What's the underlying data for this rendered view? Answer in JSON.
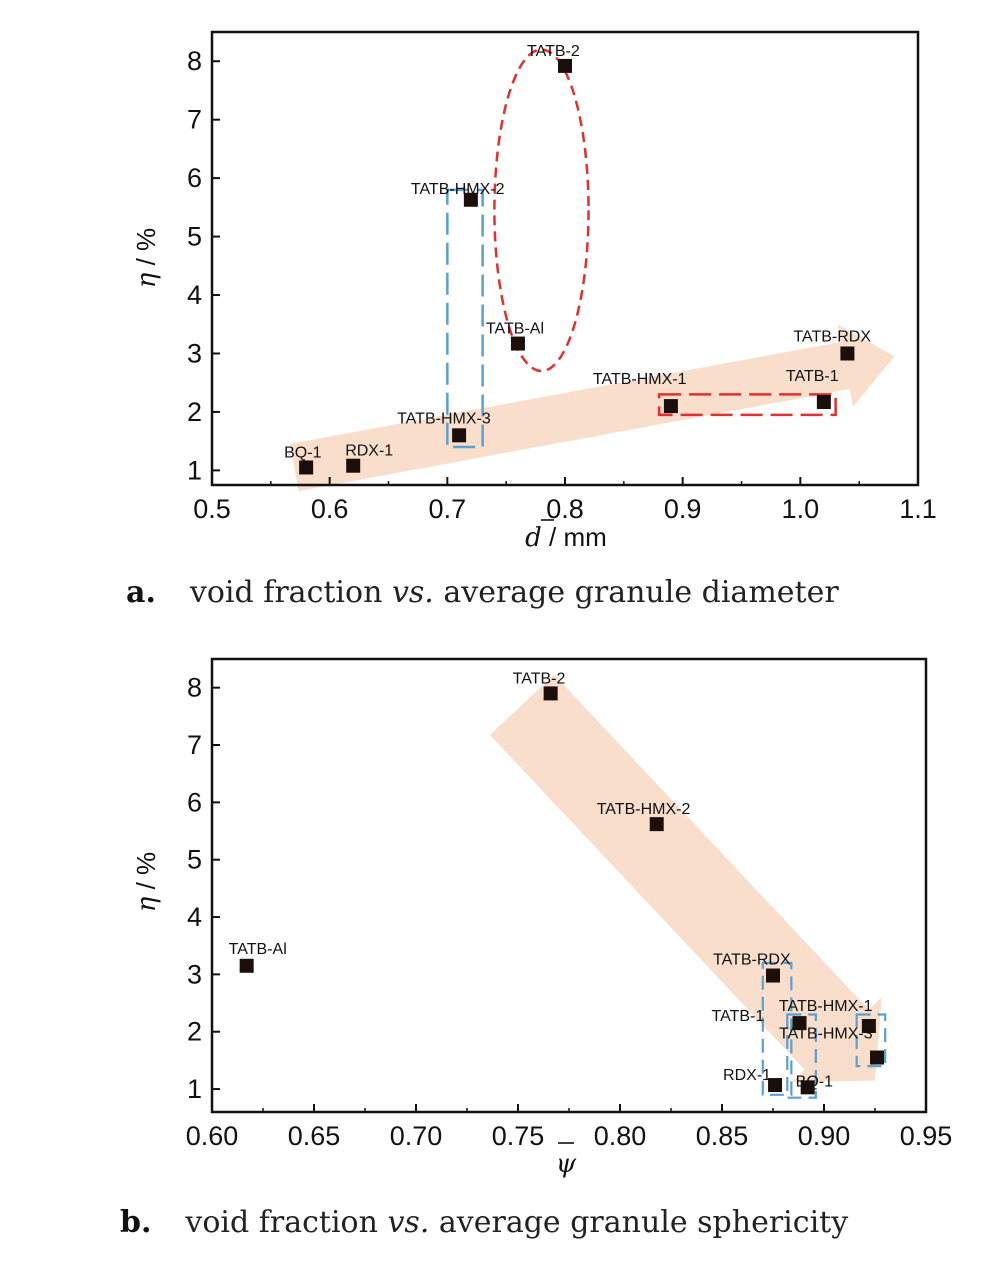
{
  "chart_data": [
    {
      "type": "scatter",
      "panel": "a.",
      "caption_prefix": "void fraction ",
      "caption_emph": "vs.",
      "caption_suffix": " average granule diameter",
      "xlabel_var": "d",
      "xlabel_unit": " / mm",
      "ylabel_var": "η",
      "ylabel_unit": " / %",
      "xlim": [
        0.5,
        1.1
      ],
      "ylim": [
        0.75,
        8.5
      ],
      "xticks": [
        0.5,
        0.6,
        0.7,
        0.8,
        0.9,
        1.0,
        1.1
      ],
      "xtick_labels": [
        "0.5",
        "0.6",
        "0.7",
        "0.8",
        "0.9",
        "1.0",
        "1.1"
      ],
      "yticks": [
        1,
        2,
        3,
        4,
        5,
        6,
        7,
        8
      ],
      "ytick_labels": [
        "1",
        "2",
        "3",
        "4",
        "5",
        "6",
        "7",
        "8"
      ],
      "grid": false,
      "points": [
        {
          "label": "BQ-1",
          "x": 0.58,
          "y": 1.05
        },
        {
          "label": "RDX-1",
          "x": 0.62,
          "y": 1.08
        },
        {
          "label": "TATB-HMX-3",
          "x": 0.71,
          "y": 1.6
        },
        {
          "label": "TATB-HMX-2",
          "x": 0.72,
          "y": 5.63
        },
        {
          "label": "TATB-2",
          "x": 0.8,
          "y": 7.92
        },
        {
          "label": "TATB-Al",
          "x": 0.76,
          "y": 3.17
        },
        {
          "label": "TATB-HMX-1",
          "x": 0.89,
          "y": 2.1
        },
        {
          "label": "TATB-1",
          "x": 1.02,
          "y": 2.17
        },
        {
          "label": "TATB-RDX",
          "x": 1.04,
          "y": 3.0
        }
      ],
      "annotations": {
        "arrow_color": "#f8dcc8",
        "red_dash_color": "#e03030",
        "blue_dash_color": "#5aa0d0",
        "ellipse": {
          "cx": 0.78,
          "cy": 5.45,
          "rx": 0.04,
          "ry": 2.75
        },
        "red_box": {
          "x0": 0.88,
          "x1": 1.03,
          "y0": 1.95,
          "y1": 2.3
        },
        "blue_box": {
          "x0": 0.7,
          "x1": 0.73,
          "y0": 1.4,
          "y1": 5.8
        },
        "arrow": [
          [
            0.57,
            1.05
          ],
          [
            1.08,
            2.95
          ]
        ]
      }
    },
    {
      "type": "scatter",
      "panel": "b.",
      "caption_prefix": "void fraction ",
      "caption_emph": "vs.",
      "caption_suffix": " average granule sphericity",
      "xlabel_var": "ψ",
      "xlabel_unit": "",
      "ylabel_var": "η",
      "ylabel_unit": " / %",
      "xlim": [
        0.6,
        0.95
      ],
      "ylim": [
        0.6,
        8.5
      ],
      "xticks": [
        0.6,
        0.65,
        0.7,
        0.75,
        0.8,
        0.85,
        0.9,
        0.95
      ],
      "xtick_labels": [
        "0.60",
        "0.65",
        "0.70",
        "0.75",
        "0.80",
        "0.85",
        "0.90",
        "0.95"
      ],
      "yticks": [
        1,
        2,
        3,
        4,
        5,
        6,
        7,
        8
      ],
      "ytick_labels": [
        "1",
        "2",
        "3",
        "4",
        "5",
        "6",
        "7",
        "8"
      ],
      "grid": false,
      "points": [
        {
          "label": "TATB-Al",
          "x": 0.617,
          "y": 3.15
        },
        {
          "label": "TATB-2",
          "x": 0.766,
          "y": 7.9
        },
        {
          "label": "TATB-HMX-2",
          "x": 0.818,
          "y": 5.62
        },
        {
          "label": "TATB-RDX",
          "x": 0.875,
          "y": 2.98
        },
        {
          "label": "TATB-1",
          "x": 0.888,
          "y": 2.15
        },
        {
          "label": "TATB-HMX-1",
          "x": 0.922,
          "y": 2.1
        },
        {
          "label": "TATB-HMX-3",
          "x": 0.926,
          "y": 1.55
        },
        {
          "label": "RDX-1",
          "x": 0.876,
          "y": 1.07
        },
        {
          "label": "BQ-1",
          "x": 0.892,
          "y": 1.03
        }
      ],
      "annotations": {
        "arrow_color": "#f8dcc8",
        "blue_dash_color": "#5aa0d0",
        "arrow": [
          [
            0.752,
            7.7
          ],
          [
            0.925,
            1.15
          ]
        ]
      }
    }
  ]
}
